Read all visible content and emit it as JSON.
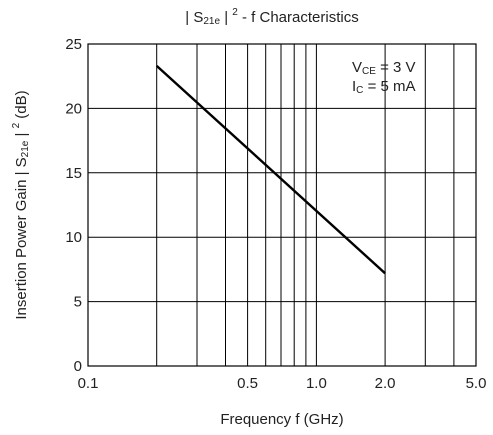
{
  "chart_data": {
    "type": "line",
    "title_parts": [
      "| S",
      "21e",
      " | ",
      "2",
      " - f Characteristics"
    ],
    "xlabel": "Frequency f (GHz)",
    "ylabel_parts": [
      "Insertion Power Gain | S",
      "21e",
      " | ",
      "2",
      " (dB)"
    ],
    "x_scale": "log",
    "xlim": [
      0.1,
      5.0
    ],
    "ylim": [
      0,
      25
    ],
    "x_grid": [
      0.2,
      0.3,
      0.4,
      0.5,
      0.6,
      0.7,
      0.8,
      0.9,
      1.0,
      2.0,
      3.0,
      4.0
    ],
    "y_grid": [
      5,
      10,
      15,
      20
    ],
    "x_ticks": [
      {
        "value": 0.1,
        "label": "0.1"
      },
      {
        "value": 0.5,
        "label": "0.5"
      },
      {
        "value": 1.0,
        "label": "1.0"
      },
      {
        "value": 2.0,
        "label": "2.0"
      },
      {
        "value": 5.0,
        "label": "5.0"
      }
    ],
    "y_ticks": [
      {
        "value": 0,
        "label": "0"
      },
      {
        "value": 5,
        "label": "5"
      },
      {
        "value": 10,
        "label": "10"
      },
      {
        "value": 15,
        "label": "15"
      },
      {
        "value": 20,
        "label": "20"
      },
      {
        "value": 25,
        "label": "25"
      }
    ],
    "series": [
      {
        "x": [
          0.2,
          2.0
        ],
        "y": [
          23.3,
          7.2
        ]
      }
    ],
    "annotations": [
      {
        "parts": [
          "V",
          "CE",
          " = 3 V"
        ]
      },
      {
        "parts": [
          "I",
          "C",
          " = 5 mA"
        ]
      }
    ],
    "grid": true,
    "annotation_placement": "top-right"
  }
}
